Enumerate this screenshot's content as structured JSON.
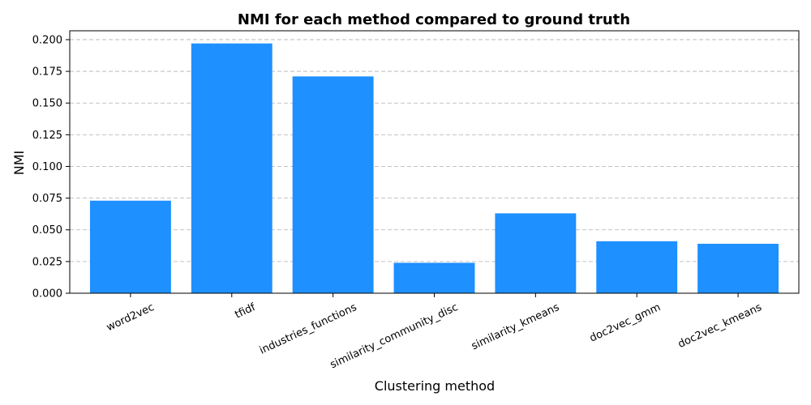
{
  "chart_data": {
    "type": "bar",
    "title": "NMI for each method compared to ground truth",
    "xlabel": "Clustering method",
    "ylabel": "NMI",
    "categories": [
      "word2vec",
      "tfidf",
      "industries_functions",
      "similarity_community_disc",
      "similarity_kmeans",
      "doc2vec_gmm",
      "doc2vec_kmeans"
    ],
    "values": [
      0.073,
      0.197,
      0.171,
      0.024,
      0.063,
      0.041,
      0.039
    ],
    "ylim": [
      0,
      0.207
    ],
    "yticks": [
      "0.000",
      "0.025",
      "0.050",
      "0.075",
      "0.100",
      "0.125",
      "0.150",
      "0.175",
      "0.200"
    ],
    "bar_color": "#1e90ff",
    "grid": "y-dashed"
  }
}
